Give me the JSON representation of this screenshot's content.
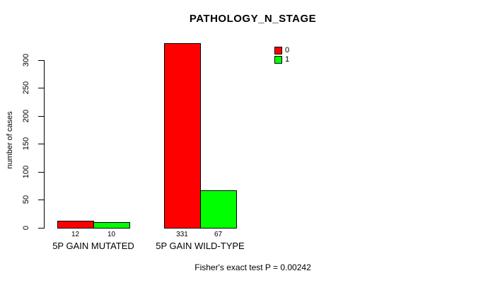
{
  "chart_data": {
    "type": "bar",
    "title": "PATHOLOGY_N_STAGE",
    "ylabel": "number of cases",
    "xlabel": "",
    "categories": [
      "5P GAIN MUTATED",
      "5P GAIN WILD-TYPE"
    ],
    "series": [
      {
        "name": "0",
        "color": "#ff0000",
        "values": [
          12,
          331
        ]
      },
      {
        "name": "1",
        "color": "#00ff00",
        "values": [
          10,
          67
        ]
      }
    ],
    "yticks": [
      0,
      50,
      100,
      150,
      200,
      250,
      300
    ],
    "ylim": [
      0,
      300
    ],
    "grid": false,
    "legend_position": "top-right",
    "bar_value_labels": [
      [
        "12",
        "10"
      ],
      [
        "331",
        "67"
      ]
    ],
    "footnote": "Fisher's exact test P = 0.00242"
  },
  "colors": {
    "background": "#ffffff",
    "axis": "#000000",
    "text": "#000000",
    "series_0": "#ff0000",
    "series_1": "#00ff00"
  }
}
